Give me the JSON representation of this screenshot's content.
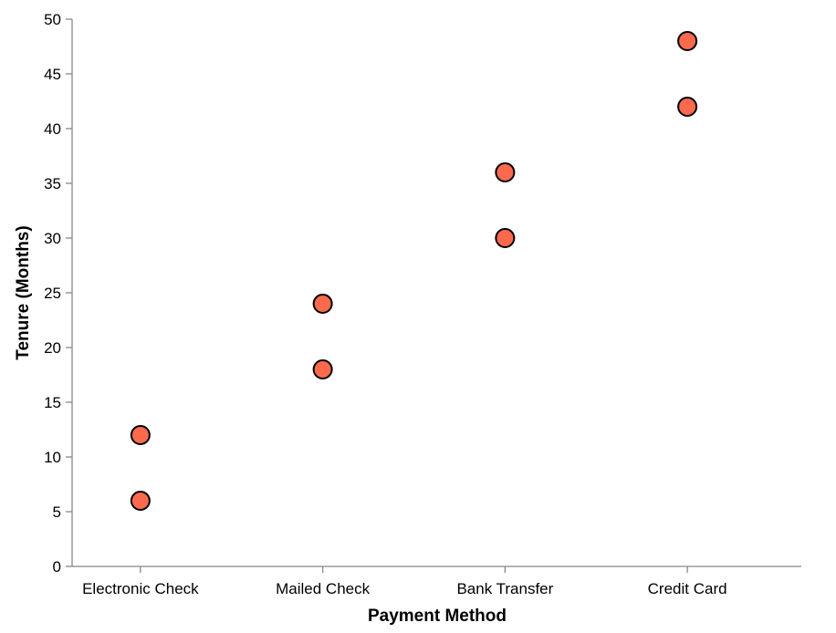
{
  "chart_data": {
    "type": "scatter",
    "xlabel": "Payment Method",
    "ylabel": "Tenure (Months)",
    "categories": [
      "Electronic Check",
      "Mailed Check",
      "Bank Transfer",
      "Credit Card"
    ],
    "ylim": [
      0,
      50
    ],
    "yticks": [
      "0",
      "5",
      "10",
      "15",
      "20",
      "25",
      "30",
      "35",
      "40",
      "45",
      "50"
    ],
    "grid": false,
    "point_color": "#fc6a4d",
    "points": [
      {
        "x": "Electronic Check",
        "y": 6
      },
      {
        "x": "Electronic Check",
        "y": 12
      },
      {
        "x": "Mailed Check",
        "y": 18
      },
      {
        "x": "Mailed Check",
        "y": 24
      },
      {
        "x": "Bank Transfer",
        "y": 30
      },
      {
        "x": "Bank Transfer",
        "y": 36
      },
      {
        "x": "Credit Card",
        "y": 42
      },
      {
        "x": "Credit Card",
        "y": 48
      }
    ]
  }
}
